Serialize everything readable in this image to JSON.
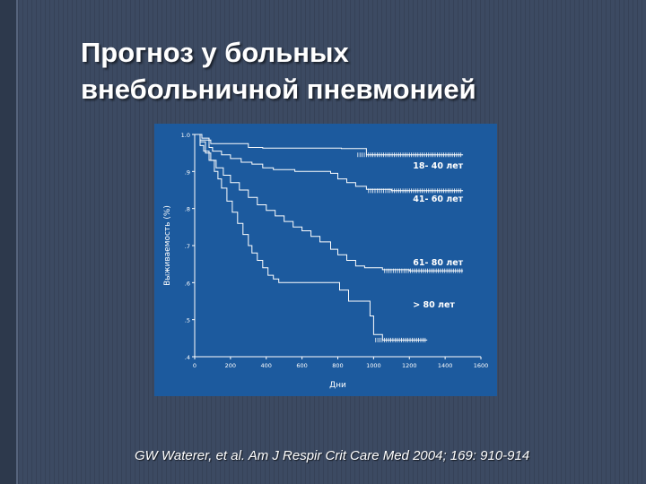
{
  "slide": {
    "title_lines": [
      "Прогноз у больных",
      "внебольничной пневмонией"
    ],
    "citation": "GW Waterer, et al. Am J Respir Crit Care Med 2004; 169: 910-914"
  },
  "colors": {
    "slide_background": "#3c4a62",
    "chart_background": "#1c5a9e",
    "line": "#ffffff"
  },
  "chart_data": {
    "type": "line",
    "title": "",
    "xlabel": "Дни",
    "ylabel": "Выживаемость (%)",
    "xlim": [
      0,
      1600
    ],
    "ylim": [
      0.4,
      1.0
    ],
    "x_ticks": [
      0,
      200,
      400,
      600,
      800,
      1000,
      1200,
      1400,
      1600
    ],
    "x_tick_labels": [
      "0",
      "200",
      "400",
      "600",
      "800",
      "1000",
      "1200",
      "1400",
      "1600"
    ],
    "y_ticks": [
      0.4,
      0.5,
      0.6,
      0.7,
      0.8,
      0.9,
      1.0
    ],
    "y_tick_labels": [
      ".4",
      ".5",
      ".6",
      ".7",
      ".8",
      ".9",
      "1.0"
    ],
    "grid": false,
    "legend": "inline labels at right",
    "series": [
      {
        "name": "18- 40 лет",
        "points": [
          [
            0,
            1.0
          ],
          [
            20,
            1.0
          ],
          [
            30,
            0.985
          ],
          [
            80,
            0.985
          ],
          [
            90,
            0.975
          ],
          [
            250,
            0.975
          ],
          [
            300,
            0.965
          ],
          [
            380,
            0.963
          ],
          [
            700,
            0.963
          ],
          [
            820,
            0.962
          ],
          [
            900,
            0.962
          ],
          [
            960,
            0.945
          ],
          [
            1500,
            0.945
          ]
        ]
      },
      {
        "name": "41- 60 лет",
        "points": [
          [
            0,
            1.0
          ],
          [
            40,
            0.99
          ],
          [
            80,
            0.965
          ],
          [
            100,
            0.955
          ],
          [
            150,
            0.945
          ],
          [
            200,
            0.935
          ],
          [
            260,
            0.925
          ],
          [
            320,
            0.92
          ],
          [
            380,
            0.91
          ],
          [
            440,
            0.905
          ],
          [
            500,
            0.905
          ],
          [
            560,
            0.9
          ],
          [
            700,
            0.9
          ],
          [
            760,
            0.895
          ],
          [
            800,
            0.88
          ],
          [
            850,
            0.87
          ],
          [
            900,
            0.86
          ],
          [
            960,
            0.852
          ],
          [
            1100,
            0.848
          ],
          [
            1500,
            0.848
          ]
        ]
      },
      {
        "name": "61- 80 лет",
        "points": [
          [
            0,
            1.0
          ],
          [
            30,
            0.98
          ],
          [
            60,
            0.95
          ],
          [
            90,
            0.93
          ],
          [
            120,
            0.91
          ],
          [
            160,
            0.89
          ],
          [
            200,
            0.87
          ],
          [
            250,
            0.85
          ],
          [
            300,
            0.83
          ],
          [
            350,
            0.81
          ],
          [
            400,
            0.795
          ],
          [
            450,
            0.78
          ],
          [
            500,
            0.765
          ],
          [
            550,
            0.75
          ],
          [
            600,
            0.74
          ],
          [
            650,
            0.725
          ],
          [
            700,
            0.71
          ],
          [
            760,
            0.69
          ],
          [
            800,
            0.675
          ],
          [
            850,
            0.66
          ],
          [
            900,
            0.645
          ],
          [
            950,
            0.64
          ],
          [
            1000,
            0.64
          ],
          [
            1050,
            0.635
          ],
          [
            1200,
            0.632
          ],
          [
            1500,
            0.632
          ]
        ]
      },
      {
        "name": "> 80 лет",
        "points": [
          [
            0,
            1.0
          ],
          [
            30,
            0.97
          ],
          [
            50,
            0.955
          ],
          [
            80,
            0.93
          ],
          [
            110,
            0.9
          ],
          [
            130,
            0.88
          ],
          [
            150,
            0.855
          ],
          [
            180,
            0.82
          ],
          [
            210,
            0.79
          ],
          [
            240,
            0.76
          ],
          [
            270,
            0.73
          ],
          [
            300,
            0.7
          ],
          [
            320,
            0.68
          ],
          [
            350,
            0.66
          ],
          [
            380,
            0.64
          ],
          [
            410,
            0.62
          ],
          [
            440,
            0.61
          ],
          [
            470,
            0.6
          ],
          [
            800,
            0.6
          ],
          [
            810,
            0.58
          ],
          [
            860,
            0.55
          ],
          [
            950,
            0.55
          ],
          [
            980,
            0.51
          ],
          [
            1000,
            0.46
          ],
          [
            1050,
            0.445
          ],
          [
            1300,
            0.445
          ]
        ]
      }
    ]
  }
}
